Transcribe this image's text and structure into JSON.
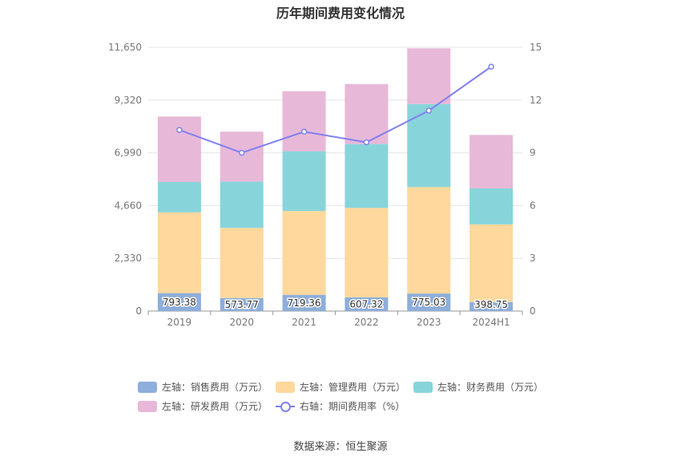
{
  "title": "历年期间费用变化情况",
  "source": "数据来源：恒生聚源",
  "chart_data": {
    "type": "bar",
    "stacked": true,
    "categories": [
      "2019",
      "2020",
      "2021",
      "2022",
      "2023",
      "2024H1"
    ],
    "left_axis": {
      "min": 0,
      "max": 11650,
      "ticks": [
        "0",
        "2,330",
        "4,660",
        "6,990",
        "9,320",
        "11,650"
      ]
    },
    "right_axis": {
      "min": 0,
      "max": 15,
      "ticks": [
        "0",
        "3",
        "6",
        "9",
        "12",
        "15"
      ]
    },
    "series": [
      {
        "name": "左轴：销售费用（万元）",
        "color": "#8eaedb",
        "values": [
          793.38,
          573.77,
          719.36,
          607.32,
          775.03,
          398.75
        ],
        "labels": [
          "793.38",
          "573.77",
          "719.36",
          "607.32",
          "775.03",
          "398.75"
        ]
      },
      {
        "name": "左轴：管理费用（万元）",
        "color": "#fed89c",
        "values": [
          3567,
          3100,
          3700,
          3950,
          4700,
          3430
        ]
      },
      {
        "name": "左轴：财务费用（万元）",
        "color": "#87d5da",
        "values": [
          1340,
          2050,
          2640,
          2820,
          3670,
          1590
        ]
      },
      {
        "name": "左轴：研发费用（万元）",
        "color": "#e8b8d8",
        "values": [
          2890,
          2200,
          2650,
          2650,
          2460,
          2360
        ]
      },
      {
        "name": "右轴：期间费用率（%）",
        "color": "#8080f0",
        "type": "line",
        "axis": "right",
        "values": [
          10.3,
          9.0,
          10.2,
          9.6,
          11.4,
          13.9
        ]
      }
    ],
    "legend_position": "bottom"
  }
}
